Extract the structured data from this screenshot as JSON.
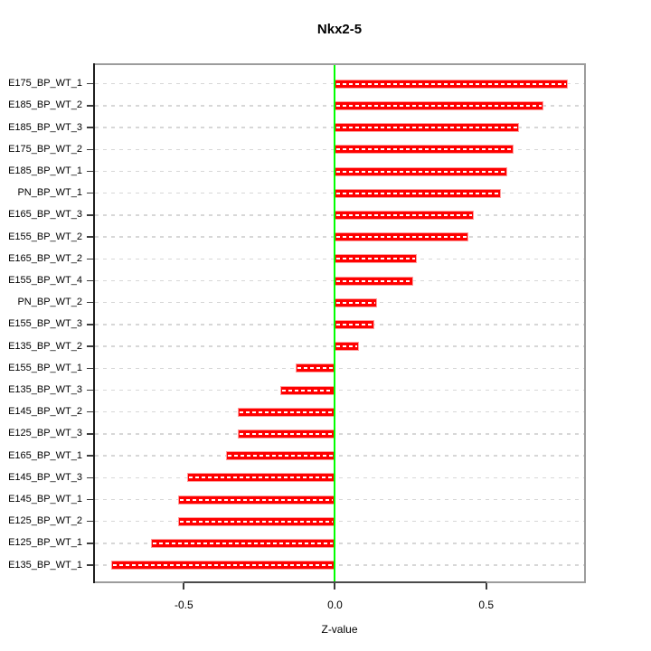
{
  "chart_data": {
    "type": "bar",
    "orientation": "horizontal",
    "title": "Nkx2-5",
    "xlabel": "Z-value",
    "ylabel": "",
    "legend": "none",
    "grid": "dashed horizontal line per category, full plot width",
    "xlim": [
      -0.8,
      0.83
    ],
    "xticks": [
      -0.5,
      0.0,
      0.5
    ],
    "xtick_labels": [
      "-0.5",
      "0.0",
      "0.5"
    ],
    "categories": [
      "E175_BP_WT_1",
      "E185_BP_WT_2",
      "E185_BP_WT_3",
      "E175_BP_WT_2",
      "E185_BP_WT_1",
      "PN_BP_WT_1",
      "E165_BP_WT_3",
      "E155_BP_WT_2",
      "E165_BP_WT_2",
      "E155_BP_WT_4",
      "PN_BP_WT_2",
      "E155_BP_WT_3",
      "E135_BP_WT_2",
      "E155_BP_WT_1",
      "E135_BP_WT_3",
      "E145_BP_WT_2",
      "E125_BP_WT_3",
      "E165_BP_WT_1",
      "E145_BP_WT_3",
      "E145_BP_WT_1",
      "E125_BP_WT_2",
      "E125_BP_WT_1",
      "E135_BP_WT_1"
    ],
    "values": [
      0.77,
      0.69,
      0.61,
      0.59,
      0.57,
      0.55,
      0.46,
      0.44,
      0.27,
      0.26,
      0.14,
      0.13,
      0.08,
      -0.13,
      -0.18,
      -0.32,
      -0.32,
      -0.36,
      -0.49,
      -0.52,
      -0.52,
      -0.61,
      -0.74
    ],
    "colors": {
      "bar_fill": "#ff0000",
      "bar_edge": "#ff9c9c",
      "bar_center_dash": "#ffffff",
      "zero_line": "#00ff00",
      "gridline": "#d7d7d7",
      "box_border": "#9c9c9c",
      "axis_line": "#1f1f1f",
      "text": "#000000",
      "background": "#ffffff"
    }
  }
}
